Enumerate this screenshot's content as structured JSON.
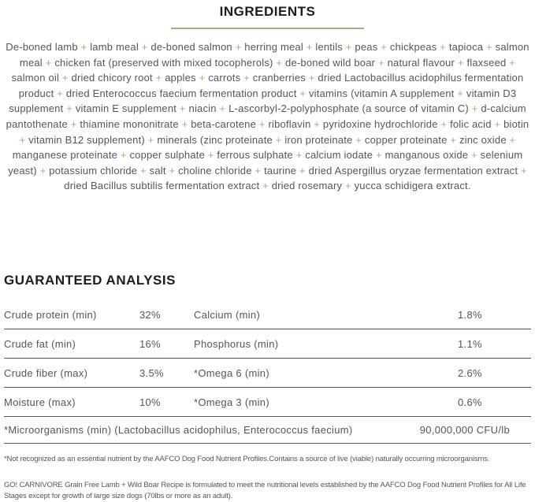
{
  "colors": {
    "accent": "#b2a67b",
    "text": "#54565a",
    "heading": "#1d1d1f",
    "divider": "#54565a"
  },
  "ingredients_section": {
    "title": "INGREDIENTS",
    "separator": "+",
    "items": [
      "De-boned lamb",
      "lamb meal",
      "de-boned salmon",
      "herring meal",
      "lentils",
      "peas",
      "chickpeas",
      "tapioca",
      "salmon meal",
      "chicken fat (preserved with mixed tocopherols)",
      "de-boned wild boar",
      "natural flavour",
      "flaxseed",
      "salmon oil",
      "dried chicory root",
      "apples",
      "carrots",
      "cranberries",
      "dried Lactobacillus acidophilus fermentation product",
      "dried Enterococcus faecium fermentation product",
      "vitamins (vitamin A supplement",
      "vitamin D3 supplement",
      "vitamin E supplement",
      "niacin",
      "L-ascorbyl-2-polyphosphate (a source of vitamin C)",
      "d-calcium pantothenate",
      "thiamine mononitrate",
      "beta-carotene",
      "riboflavin",
      "pyridoxine hydrochloride",
      "folic acid",
      "biotin",
      "vitamin B12 supplement)",
      "minerals (zinc proteinate",
      "iron proteinate",
      "copper proteinate",
      "zinc oxide",
      "manganese proteinate",
      "copper sulphate",
      "ferrous sulphate",
      "calcium iodate",
      "manganous oxide",
      "selenium yeast)",
      "potassium chloride",
      "salt",
      "choline chloride",
      "taurine",
      "dried Aspergillus oryzae fermentation extract",
      "dried Bacillus subtilis fermentation extract",
      "dried rosemary",
      "yucca schidigera extract."
    ]
  },
  "guaranteed_analysis": {
    "title": "GUARANTEED ANALYSIS",
    "rows": [
      {
        "label_left": "Crude protein (min)",
        "value_left": "32%",
        "label_right": "Calcium (min)",
        "value_right": "1.8%"
      },
      {
        "label_left": "Crude fat (min)",
        "value_left": "16%",
        "label_right": "Phosphorus (min)",
        "value_right": "1.1%"
      },
      {
        "label_left": "Crude fiber (max)",
        "value_left": "3.5%",
        "label_right": "*Omega 6 (min)",
        "value_right": "2.6%"
      },
      {
        "label_left": "Moisture (max)",
        "value_left": "10%",
        "label_right": "*Omega 3 (min)",
        "value_right": "0.6%"
      }
    ],
    "full_row": {
      "label": "*Microorganisms (min) (Lactobacillus acidophilus, Enterococcus faecium)",
      "value": "90,000,000 CFU/lb"
    }
  },
  "footnote": "*Not recognized as an essential nutrient by the AAFCO Dog Food Nutrient Profiles.Contains a source of live (viable) naturally occurring microorganisms.",
  "formulation_note": "GO! CARNIVORE Grain Free Lamb + Wild Boar Recipe is formulated to meet the nutritional levels established by the AAFCO Dog Food Nutrient Profiles for All Life Stages except for growth of large size dogs (70lbs or more as an adult)."
}
